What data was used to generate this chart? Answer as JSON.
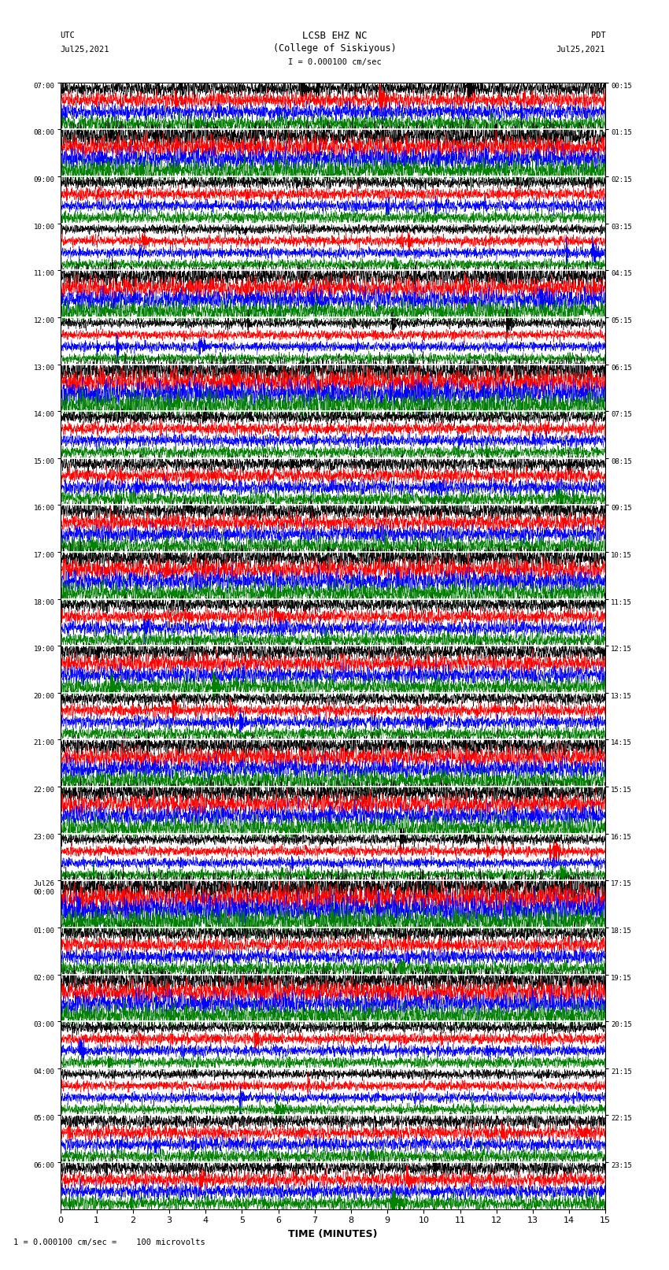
{
  "title_line1": "LCSB EHZ NC",
  "title_line2": "(College of Siskiyous)",
  "scale_label": "I = 0.000100 cm/sec",
  "footer_label": "1 = 0.000100 cm/sec =    100 microvolts",
  "utc_label": "UTC",
  "utc_date": "Jul25,2021",
  "pdt_label": "PDT",
  "pdt_date": "Jul25,2021",
  "xlabel": "TIME (MINUTES)",
  "left_times": [
    "07:00",
    "08:00",
    "09:00",
    "10:00",
    "11:00",
    "12:00",
    "13:00",
    "14:00",
    "15:00",
    "16:00",
    "17:00",
    "18:00",
    "19:00",
    "20:00",
    "21:00",
    "22:00",
    "23:00",
    "Jul26\n00:00",
    "01:00",
    "02:00",
    "03:00",
    "04:00",
    "05:00",
    "06:00"
  ],
  "right_times": [
    "00:15",
    "01:15",
    "02:15",
    "03:15",
    "04:15",
    "05:15",
    "06:15",
    "07:15",
    "08:15",
    "09:15",
    "10:15",
    "11:15",
    "12:15",
    "13:15",
    "14:15",
    "15:15",
    "16:15",
    "17:15",
    "18:15",
    "19:15",
    "20:15",
    "21:15",
    "22:15",
    "23:15"
  ],
  "n_rows": 24,
  "n_traces_per_row": 4,
  "colors": [
    "black",
    "red",
    "blue",
    "green"
  ],
  "bg_color": "#ffffff",
  "separator_color": "#cccccc",
  "x_min": 0,
  "x_max": 15,
  "x_ticks": [
    0,
    1,
    2,
    3,
    4,
    5,
    6,
    7,
    8,
    9,
    10,
    11,
    12,
    13,
    14,
    15
  ],
  "fig_width": 8.5,
  "fig_height": 16.13,
  "dpi": 100,
  "seed": 42
}
